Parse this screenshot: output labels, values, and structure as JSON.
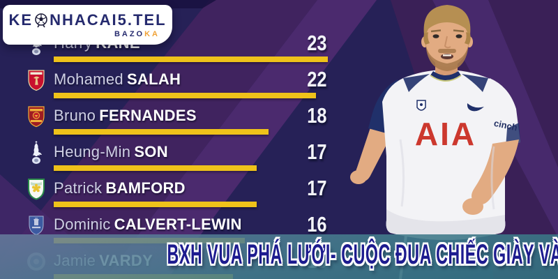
{
  "brand": {
    "prefix": "KE",
    "suffix": "NHACAI5.TEL",
    "sub_dark": "BAZO",
    "sub_accent": "KA",
    "text_color": "#252a6e",
    "accent_color": "#f0a236"
  },
  "banner": {
    "text": "BXH VUA PHÁ LƯỚI- CUỘC ĐUA CHIẾC GIÀY VÀNG NHA",
    "text_color": "#1d1b8f",
    "outline_color": "#ffffff"
  },
  "list": {
    "bar_color": "#efc21a"
  },
  "players": [
    {
      "first": "Harry",
      "last": "KANE",
      "club": "tottenham",
      "goals": 23
    },
    {
      "first": "Mohamed",
      "last": "SALAH",
      "club": "liverpool",
      "goals": 22
    },
    {
      "first": "Bruno",
      "last": "FERNANDES",
      "club": "manchester-united",
      "goals": 18
    },
    {
      "first": "Heung-Min",
      "last": "SON",
      "club": "tottenham",
      "goals": 17
    },
    {
      "first": "Patrick",
      "last": "BAMFORD",
      "club": "leeds-united",
      "goals": 17
    },
    {
      "first": "Dominic",
      "last": "CALVERT-LEWIN",
      "club": "everton",
      "goals": 16
    },
    {
      "first": "Jamie",
      "last": "VARDY",
      "club": "leicester-city",
      "goals": 15
    }
  ],
  "chart_data": {
    "type": "bar",
    "orientation": "horizontal",
    "title": "BXH VUA PHÁ LƯỚI- CUỘC ĐUA CHIẾC GIÀY VÀNG NHA",
    "categories": [
      "Harry KANE",
      "Mohamed SALAH",
      "Bruno FERNANDES",
      "Heung-Min SON",
      "Patrick BAMFORD",
      "Dominic CALVERT-LEWIN",
      "Jamie VARDY"
    ],
    "values": [
      23,
      22,
      18,
      17,
      17,
      16,
      15
    ],
    "bar_color": "#efc21a",
    "value_labels": true,
    "xlim": [
      0,
      23
    ],
    "legend": "none",
    "grid": false
  }
}
